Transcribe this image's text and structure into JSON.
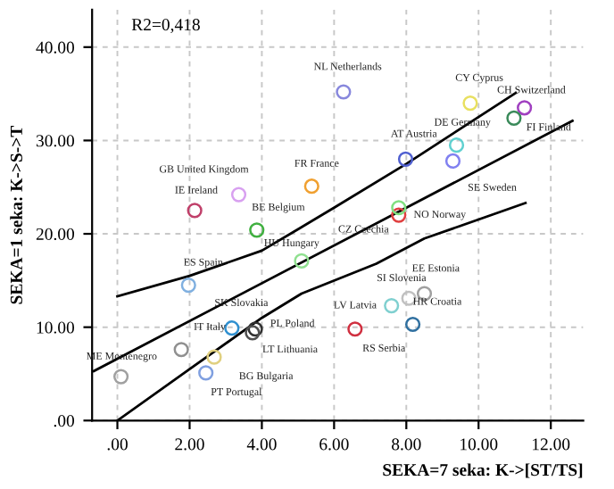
{
  "chart_data": {
    "type": "scatter",
    "xlabel": "SEKA=7 seka: K->[ST/TS]",
    "ylabel": "SEKA=1 seka: K->S->T",
    "annotations": [
      "R2=0,418"
    ],
    "xlim": [
      -0.7,
      12.9
    ],
    "ylim": [
      0,
      44
    ],
    "xticks": [
      {
        "value": 0,
        "label": ".00"
      },
      {
        "value": 2,
        "label": "2.00"
      },
      {
        "value": 4,
        "label": "4.00"
      },
      {
        "value": 6,
        "label": "6.00"
      },
      {
        "value": 8,
        "label": "8.00"
      },
      {
        "value": 10,
        "label": "10.00"
      },
      {
        "value": 12,
        "label": "12.00"
      }
    ],
    "yticks": [
      {
        "value": 0,
        "label": ".00"
      },
      {
        "value": 10,
        "label": "10.00"
      },
      {
        "value": 20,
        "label": "20.00"
      },
      {
        "value": 30,
        "label": "30.00"
      },
      {
        "value": 40,
        "label": "40.00"
      }
    ],
    "grid": true,
    "series": [
      {
        "marker": "circle",
        "x": [
          2.14,
          3.36,
          3.86,
          6.26,
          9.77,
          11.27,
          10.98,
          9.39,
          9.29,
          7.98,
          5.38,
          7.79,
          7.79,
          5.1,
          1.97,
          3.17,
          3.82,
          3.74,
          1.77,
          2.68,
          2.45,
          0.1,
          8.5,
          8.07,
          7.59,
          8.18,
          6.58
        ],
        "values": [
          22.5,
          24.2,
          20.4,
          35.2,
          34.0,
          33.5,
          32.4,
          29.5,
          27.8,
          28.0,
          25.1,
          22.0,
          22.8,
          17.1,
          14.5,
          9.9,
          9.8,
          9.4,
          7.6,
          6.8,
          5.1,
          4.7,
          13.6,
          13.1,
          12.3,
          10.3,
          9.8
        ],
        "value_labels": [
          "IE Ireland",
          "GB United Kingdom",
          "BE Belgium",
          "NL Netherlands",
          "CY Cyprus",
          "CH Switzerland",
          "FI Finland",
          "DE Germany",
          "SE Sweden",
          "AT Austria",
          "FR France",
          "NO Norway",
          "CZ Czechia",
          "HU Hungary",
          "ES Spain",
          "SK Slovakia",
          "PL Poland",
          "LT Lithuania",
          "IT Italy",
          "BG Bulgaria",
          "PT Portugal",
          "ME Montenegro",
          "EE Estonia",
          "SI Slovenia",
          "LV Latvia",
          "HR Croatia",
          "RS Serbia"
        ],
        "colors": [
          "#c0406a",
          "#d8a0f0",
          "#40b040",
          "#8888dd",
          "#e8e060",
          "#a040c0",
          "#3a8a5a",
          "#60d0d0",
          "#8080f0",
          "#5060d0",
          "#f0a030",
          "#e04040",
          "#80e080",
          "#90e090",
          "#80b0e0",
          "#3090d0",
          "#303030",
          "#505050",
          "#909090",
          "#e0d080",
          "#80a0e0",
          "#a0a0a0",
          "#a0a0a0",
          "#c0c0c0",
          "#80d0d0",
          "#3070a0",
          "#d03040"
        ]
      },
      {
        "type": "line",
        "color": "#000000",
        "x": [
          -0.65,
          12.6
        ],
        "values": [
          5.3,
          32.1
        ]
      },
      {
        "type": "line",
        "color": "#000000",
        "x": [
          0,
          2,
          4,
          5.05,
          6,
          8,
          11.03
        ],
        "values": [
          13.3,
          15.5,
          18.2,
          20.6,
          22.8,
          27.5,
          35.1
        ]
      },
      {
        "type": "line",
        "color": "#000000",
        "x": [
          0,
          2,
          4,
          5.1,
          7.17,
          8.5,
          11.3
        ],
        "values": [
          0,
          5.5,
          11,
          13.6,
          16.8,
          19.5,
          23.3
        ]
      }
    ]
  }
}
